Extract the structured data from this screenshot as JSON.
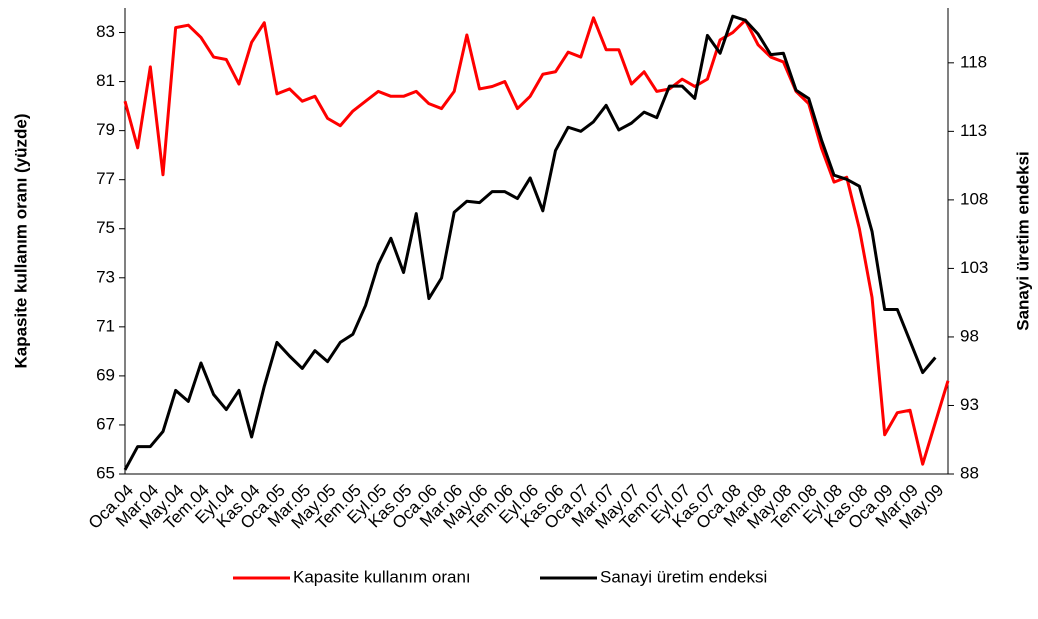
{
  "chart_data": {
    "type": "line",
    "y_label": "Kapasite kullanım oranı (yüzde)",
    "y2_label": "Sanayi üretim endeksi",
    "categories": [
      "Oca.04",
      null,
      "Mar.04",
      null,
      "May.04",
      null,
      "Tem.04",
      null,
      "Eyl.04",
      null,
      "Kas.04",
      null,
      "Oca.05",
      null,
      "Mar.05",
      null,
      "May.05",
      null,
      "Tem.05",
      null,
      "Eyl.05",
      null,
      "Kas.05",
      null,
      "Oca.06",
      null,
      "Mar.06",
      null,
      "May.06",
      null,
      "Tem.06",
      null,
      "Eyl.06",
      null,
      "Kas.06",
      null,
      "Oca.07",
      null,
      "Mar.07",
      null,
      "May.07",
      null,
      "Tem.07",
      null,
      "Eyl.07",
      null,
      "Kas.07",
      null,
      "Oca.08",
      null,
      "Mar.08",
      null,
      "May.08",
      null,
      "Tem.08",
      null,
      "Eyl.08",
      null,
      "Kas.08",
      null,
      "Oca.09",
      null,
      "Mar.09",
      null,
      "May.09",
      null
    ],
    "series": [
      {
        "name": "Kapasite kullanım oranı",
        "color": "#ff0000",
        "axis": "y",
        "values": [
          80.2,
          78.3,
          81.6,
          77.2,
          83.2,
          83.3,
          82.8,
          82.0,
          81.9,
          80.9,
          82.6,
          83.4,
          80.5,
          80.7,
          80.2,
          80.4,
          79.5,
          79.2,
          79.8,
          80.2,
          80.6,
          80.4,
          80.4,
          80.6,
          80.1,
          79.9,
          80.6,
          82.9,
          80.7,
          80.8,
          81.0,
          79.9,
          80.4,
          81.3,
          81.4,
          82.2,
          82.0,
          83.6,
          82.3,
          82.3,
          80.9,
          81.4,
          80.6,
          80.7,
          81.1,
          80.8,
          81.1,
          82.7,
          83.0,
          83.5,
          82.5,
          82.0,
          81.8,
          80.6,
          80.1,
          78.3,
          76.9,
          77.1,
          75.0,
          72.2,
          66.6,
          67.5,
          67.6,
          65.4,
          67.1,
          68.8
        ]
      },
      {
        "name": "Sanayi üretim endeksi",
        "color": "#000000",
        "axis": "y2",
        "values": [
          88.3,
          90.0,
          90.0,
          91.1,
          94.1,
          93.3,
          96.1,
          93.8,
          92.7,
          94.1,
          90.7,
          94.4,
          97.6,
          96.6,
          95.7,
          97.0,
          96.2,
          97.6,
          98.2,
          100.3,
          103.3,
          105.2,
          102.7,
          107.0,
          100.8,
          102.3,
          107.1,
          107.9,
          107.8,
          108.6,
          108.6,
          108.1,
          109.6,
          107.2,
          111.6,
          113.3,
          113.0,
          113.7,
          114.9,
          113.1,
          113.6,
          114.4,
          114.0,
          116.3,
          116.3,
          115.4,
          120.0,
          118.7,
          121.4,
          121.1,
          120.1,
          118.6,
          118.7,
          116.0,
          115.4,
          112.4,
          109.8,
          109.5,
          109.0,
          105.7,
          100.0,
          100.0,
          97.7,
          95.4,
          96.5,
          null
        ]
      }
    ],
    "ylim": [
      65,
      84
    ],
    "yticks": [
      65,
      67,
      69,
      71,
      73,
      75,
      77,
      79,
      81,
      83
    ],
    "y2lim": [
      88,
      122
    ],
    "y2ticks": [
      88,
      93,
      98,
      103,
      108,
      113,
      118
    ],
    "grid": false,
    "legend": "bottom"
  }
}
